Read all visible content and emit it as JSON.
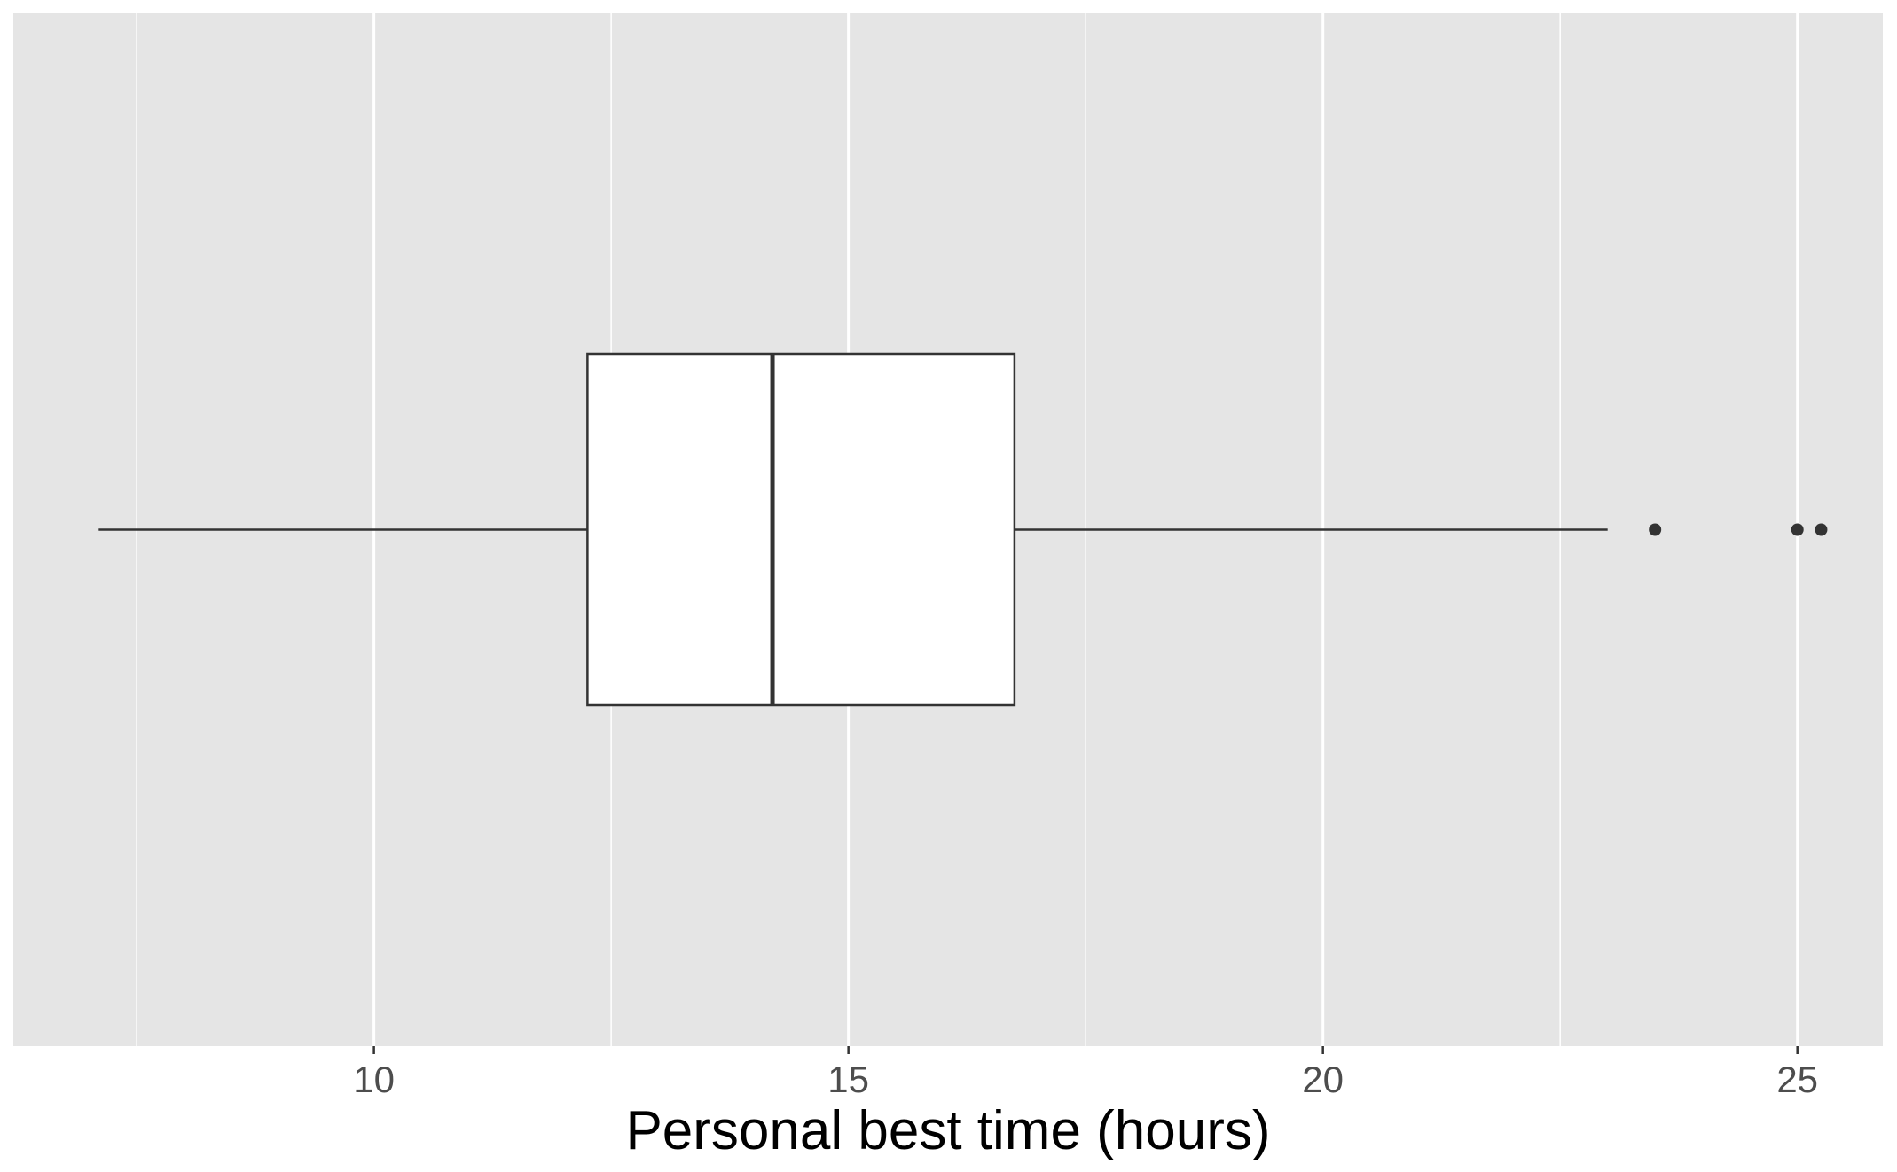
{
  "chart_data": {
    "type": "boxplot",
    "orientation": "horizontal",
    "title": "",
    "xlabel": "Personal best time (hours)",
    "ylabel": "",
    "xlim": [
      6.2,
      25.9
    ],
    "x_ticks": [
      10,
      15,
      20,
      25
    ],
    "x_tick_labels": [
      "10",
      "15",
      "20",
      "25"
    ],
    "x_minor_gridlines": [
      7.5,
      12.5,
      17.5,
      22.5
    ],
    "grid": true,
    "legend": "none",
    "box": {
      "whisker_low": 7.1,
      "q1": 12.25,
      "median": 14.2,
      "q3": 16.75,
      "whisker_high": 23.0,
      "outliers": [
        23.5,
        25.0,
        25.25
      ]
    },
    "colors": {
      "panel_background": "#e5e5e5",
      "gridline": "#ffffff",
      "box_fill": "#ffffff",
      "box_stroke": "#333333",
      "outlier_fill": "#333333",
      "tick_label": "#4d4d4d",
      "axis_title": "#000000"
    }
  }
}
